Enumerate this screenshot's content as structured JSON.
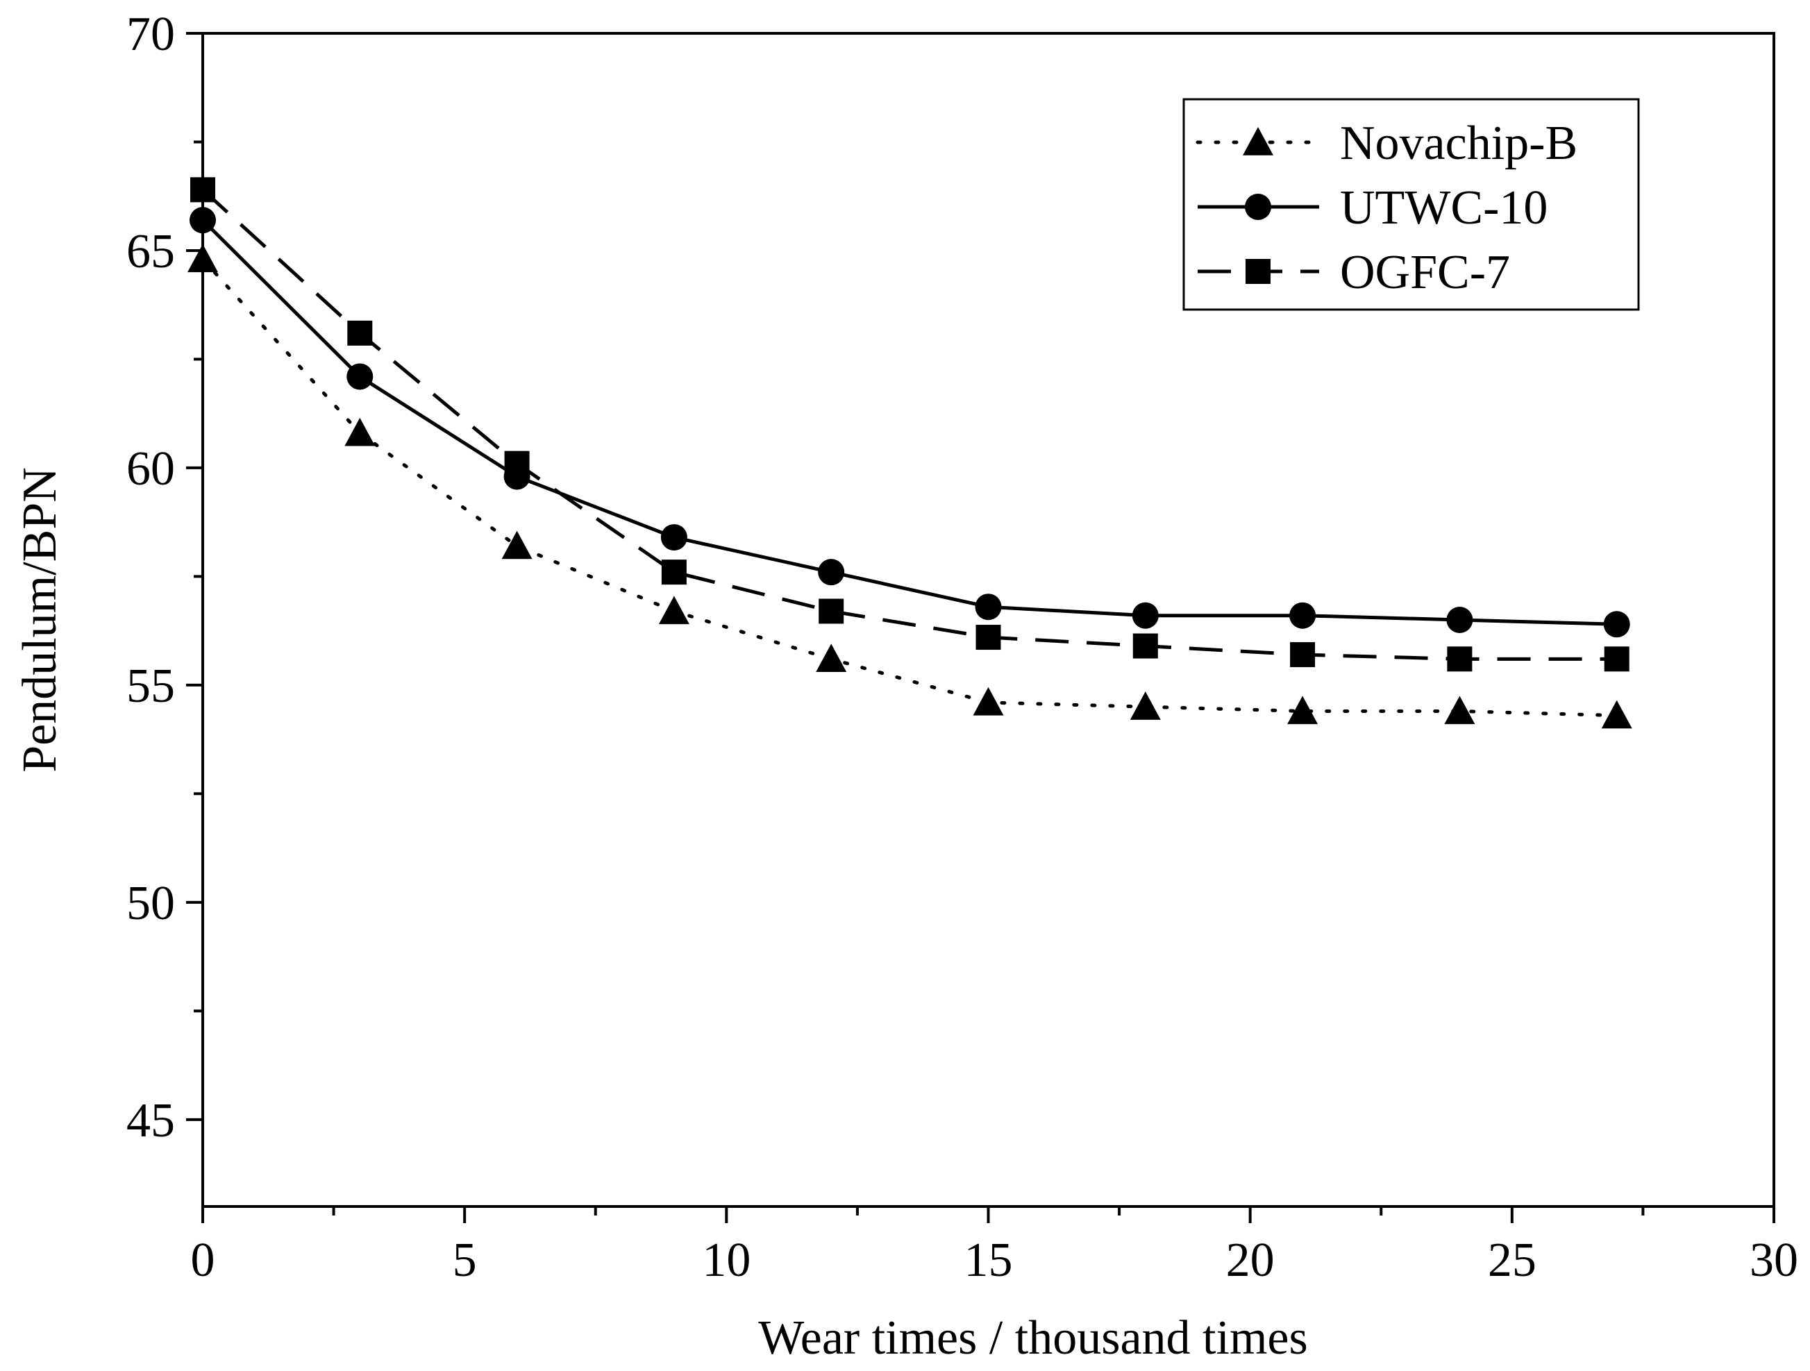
{
  "chart_data": {
    "type": "line",
    "title": "",
    "xlabel": "Wear times / thousand times",
    "ylabel": "Pendulum/BPN",
    "xlim": [
      0,
      30
    ],
    "ylim": [
      43,
      70
    ],
    "xticks": [
      0,
      5,
      10,
      15,
      20,
      25,
      30
    ],
    "yticks": [
      45,
      50,
      55,
      60,
      65,
      70
    ],
    "grid": false,
    "legend_position": "top-right",
    "x": [
      0,
      3,
      6,
      9,
      12,
      15,
      18,
      21,
      24,
      27
    ],
    "series": [
      {
        "name": "Novachip-B",
        "marker": "triangle",
        "line_style": "dotted",
        "values": [
          64.8,
          60.8,
          58.2,
          56.7,
          55.6,
          54.6,
          54.5,
          54.4,
          54.4,
          54.3
        ]
      },
      {
        "name": "UTWC-10",
        "marker": "circle",
        "line_style": "solid",
        "values": [
          65.7,
          62.1,
          59.8,
          58.4,
          57.6,
          56.8,
          56.6,
          56.6,
          56.5,
          56.4
        ]
      },
      {
        "name": "OGFC-7",
        "marker": "square",
        "line_style": "dashed",
        "values": [
          66.4,
          63.1,
          60.1,
          57.6,
          56.7,
          56.1,
          55.9,
          55.7,
          55.6,
          55.6
        ]
      }
    ],
    "colors": {
      "line": "#000000",
      "background": "#ffffff"
    }
  }
}
